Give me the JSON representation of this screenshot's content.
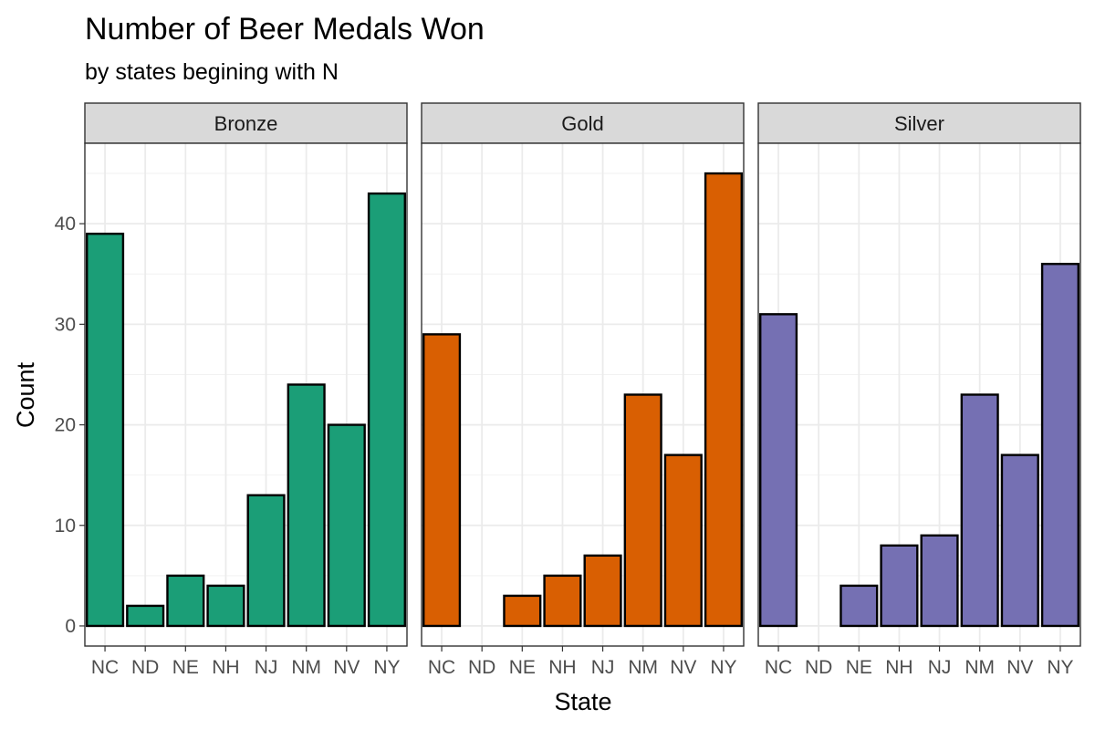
{
  "chart_data": {
    "type": "bar",
    "title": "Number of Beer Medals Won",
    "subtitle": "by states begining with N",
    "xlabel": "State",
    "ylabel": "Count",
    "categories": [
      "NC",
      "ND",
      "NE",
      "NH",
      "NJ",
      "NM",
      "NV",
      "NY"
    ],
    "ylim": [
      -2,
      48
    ],
    "yticks": [
      0,
      10,
      20,
      30,
      40
    ],
    "grid": true,
    "legend": "none",
    "facets": [
      {
        "name": "Bronze",
        "color": "#1b9e77",
        "values": [
          39,
          2,
          5,
          4,
          13,
          24,
          20,
          43
        ]
      },
      {
        "name": "Gold",
        "color": "#d95f02",
        "values": [
          29,
          0,
          3,
          5,
          7,
          23,
          17,
          45
        ]
      },
      {
        "name": "Silver",
        "color": "#7570b3",
        "values": [
          31,
          0,
          4,
          8,
          9,
          23,
          17,
          36
        ]
      }
    ]
  }
}
